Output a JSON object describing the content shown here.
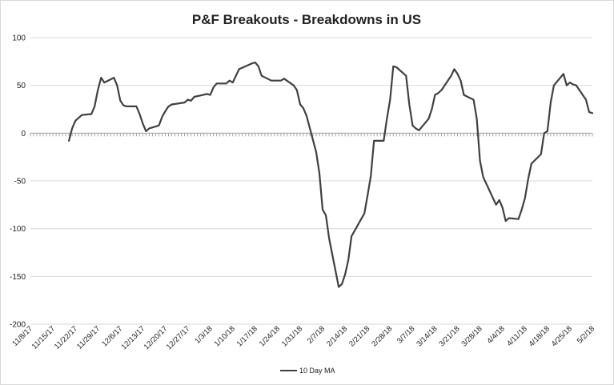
{
  "chart_data": {
    "type": "line",
    "title": "P&F Breakouts - Breakdowns in US",
    "xlabel": "",
    "ylabel": "",
    "ylim": [
      -200,
      100
    ],
    "yticks": [
      100,
      50,
      0,
      -50,
      -100,
      -150,
      -200
    ],
    "ytick_labels": [
      "100",
      "50",
      "0",
      "-50",
      "-100",
      "-150",
      "-200"
    ],
    "xticks": [
      "2017-11-08",
      "2017-11-15",
      "2017-11-22",
      "2017-11-29",
      "2017-12-06",
      "2017-12-13",
      "2017-12-20",
      "2017-12-27",
      "2018-01-03",
      "2018-01-10",
      "2018-01-17",
      "2018-01-24",
      "2018-01-31",
      "2018-02-07",
      "2018-02-14",
      "2018-02-21",
      "2018-02-28",
      "2018-03-07",
      "2018-03-14",
      "2018-03-21",
      "2018-03-28",
      "2018-04-04",
      "2018-04-11",
      "2018-04-18",
      "2018-04-25",
      "2018-05-02"
    ],
    "xtick_labels": [
      "11/8/17",
      "11/15/17",
      "11/22/17",
      "11/29/17",
      "12/6/17",
      "12/13/17",
      "12/20/17",
      "12/27/17",
      "1/3/18",
      "1/10/18",
      "1/17/18",
      "1/24/18",
      "1/31/18",
      "2/7/18",
      "2/14/18",
      "2/21/18",
      "2/28/18",
      "3/7/18",
      "3/14/18",
      "3/21/18",
      "3/28/18",
      "4/4/18",
      "4/11/18",
      "4/18/18",
      "4/25/18",
      "5/2/18"
    ],
    "grid": true,
    "legend_position": "bottom",
    "series": [
      {
        "name": "10 Day MA",
        "color": "#404040",
        "points": [
          [
            "2017-11-20",
            -8
          ],
          [
            "2017-11-21",
            5
          ],
          [
            "2017-11-22",
            13
          ],
          [
            "2017-11-24",
            19
          ],
          [
            "2017-11-27",
            20
          ],
          [
            "2017-11-28",
            28
          ],
          [
            "2017-11-29",
            45
          ],
          [
            "2017-11-30",
            58
          ],
          [
            "2017-12-01",
            53
          ],
          [
            "2017-12-04",
            58
          ],
          [
            "2017-12-05",
            50
          ],
          [
            "2017-12-06",
            34
          ],
          [
            "2017-12-07",
            29
          ],
          [
            "2017-12-08",
            28
          ],
          [
            "2017-12-11",
            28
          ],
          [
            "2017-12-12",
            20
          ],
          [
            "2017-12-13",
            10
          ],
          [
            "2017-12-14",
            2
          ],
          [
            "2017-12-15",
            5
          ],
          [
            "2017-12-18",
            8
          ],
          [
            "2017-12-19",
            17
          ],
          [
            "2017-12-20",
            23
          ],
          [
            "2017-12-21",
            28
          ],
          [
            "2017-12-22",
            30
          ],
          [
            "2017-12-26",
            32
          ],
          [
            "2017-12-27",
            35
          ],
          [
            "2017-12-28",
            34
          ],
          [
            "2017-12-29",
            38
          ],
          [
            "2018-01-02",
            41
          ],
          [
            "2018-01-03",
            40
          ],
          [
            "2018-01-04",
            48
          ],
          [
            "2018-01-05",
            52
          ],
          [
            "2018-01-08",
            52
          ],
          [
            "2018-01-09",
            55
          ],
          [
            "2018-01-10",
            53
          ],
          [
            "2018-01-11",
            60
          ],
          [
            "2018-01-12",
            67
          ],
          [
            "2018-01-16",
            73
          ],
          [
            "2018-01-17",
            74
          ],
          [
            "2018-01-18",
            70
          ],
          [
            "2018-01-19",
            60
          ],
          [
            "2018-01-22",
            55
          ],
          [
            "2018-01-23",
            55
          ],
          [
            "2018-01-24",
            55
          ],
          [
            "2018-01-25",
            55
          ],
          [
            "2018-01-26",
            57
          ],
          [
            "2018-01-29",
            50
          ],
          [
            "2018-01-30",
            45
          ],
          [
            "2018-01-31",
            30
          ],
          [
            "2018-02-01",
            26
          ],
          [
            "2018-02-02",
            18
          ],
          [
            "2018-02-05",
            -20
          ],
          [
            "2018-02-06",
            -42
          ],
          [
            "2018-02-07",
            -80
          ],
          [
            "2018-02-08",
            -86
          ],
          [
            "2018-02-09",
            -110
          ],
          [
            "2018-02-12",
            -161
          ],
          [
            "2018-02-13",
            -158
          ],
          [
            "2018-02-14",
            -148
          ],
          [
            "2018-02-15",
            -133
          ],
          [
            "2018-02-16",
            -108
          ],
          [
            "2018-02-20",
            -84
          ],
          [
            "2018-02-21",
            -65
          ],
          [
            "2018-02-22",
            -45
          ],
          [
            "2018-02-23",
            -8
          ],
          [
            "2018-02-26",
            -8
          ],
          [
            "2018-02-27",
            15
          ],
          [
            "2018-02-28",
            35
          ],
          [
            "2018-03-01",
            70
          ],
          [
            "2018-03-02",
            69
          ],
          [
            "2018-03-05",
            60
          ],
          [
            "2018-03-06",
            30
          ],
          [
            "2018-03-07",
            8
          ],
          [
            "2018-03-08",
            5
          ],
          [
            "2018-03-09",
            3
          ],
          [
            "2018-03-12",
            15
          ],
          [
            "2018-03-13",
            25
          ],
          [
            "2018-03-14",
            40
          ],
          [
            "2018-03-15",
            42
          ],
          [
            "2018-03-16",
            45
          ],
          [
            "2018-03-19",
            60
          ],
          [
            "2018-03-20",
            67
          ],
          [
            "2018-03-21",
            62
          ],
          [
            "2018-03-22",
            55
          ],
          [
            "2018-03-23",
            40
          ],
          [
            "2018-03-26",
            35
          ],
          [
            "2018-03-27",
            15
          ],
          [
            "2018-03-28",
            -29
          ],
          [
            "2018-03-29",
            -46
          ],
          [
            "2018-04-02",
            -75
          ],
          [
            "2018-04-03",
            -70
          ],
          [
            "2018-04-04",
            -78
          ],
          [
            "2018-04-05",
            -92
          ],
          [
            "2018-04-06",
            -89
          ],
          [
            "2018-04-09",
            -90
          ],
          [
            "2018-04-10",
            -80
          ],
          [
            "2018-04-11",
            -68
          ],
          [
            "2018-04-12",
            -48
          ],
          [
            "2018-04-13",
            -32
          ],
          [
            "2018-04-16",
            -22
          ],
          [
            "2018-04-17",
            0
          ],
          [
            "2018-04-18",
            2
          ],
          [
            "2018-04-19",
            32
          ],
          [
            "2018-04-20",
            50
          ],
          [
            "2018-04-23",
            62
          ],
          [
            "2018-04-24",
            50
          ],
          [
            "2018-04-25",
            53
          ],
          [
            "2018-04-26",
            51
          ],
          [
            "2018-04-27",
            50
          ],
          [
            "2018-04-30",
            35
          ],
          [
            "2018-05-01",
            22
          ],
          [
            "2018-05-02",
            21
          ]
        ]
      }
    ]
  }
}
